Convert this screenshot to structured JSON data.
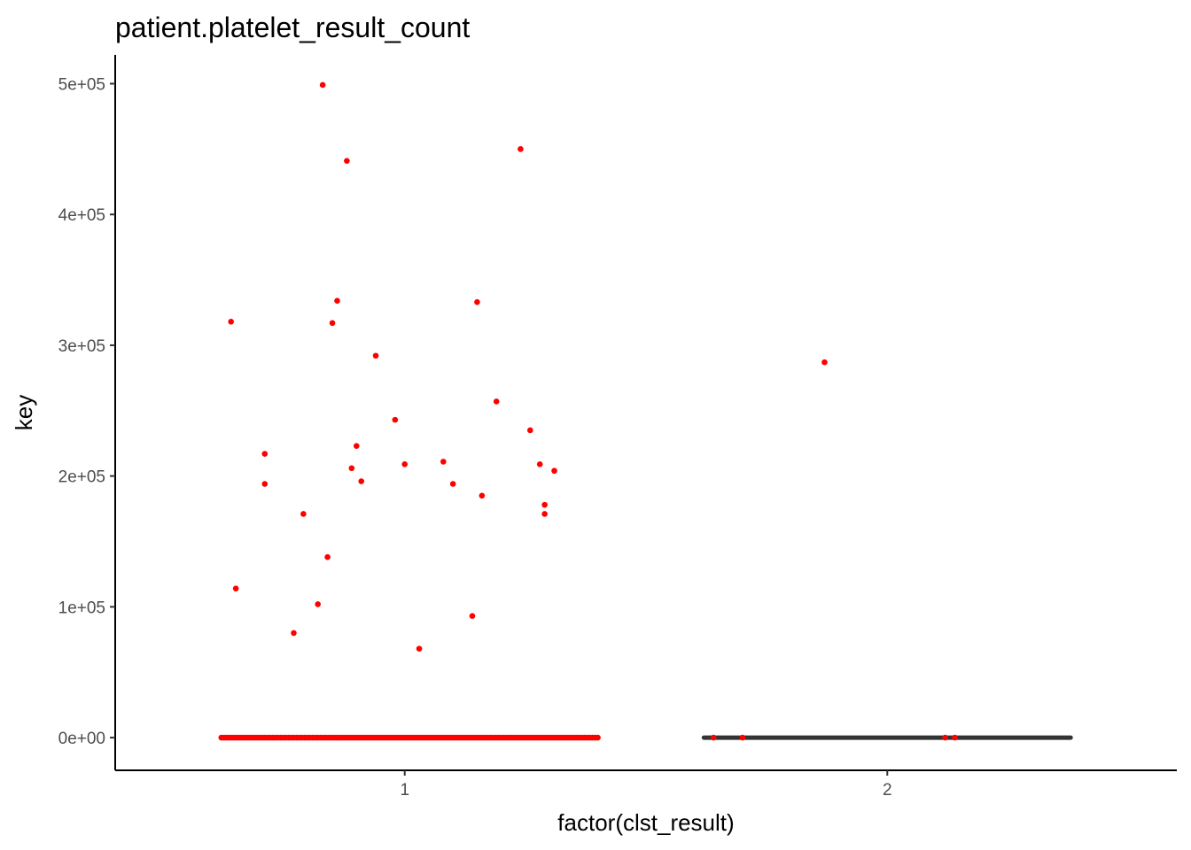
{
  "chart_data": {
    "type": "scatter",
    "title": "patient.platelet_result_count",
    "xlabel": "factor(clst_result)",
    "ylabel": "key",
    "categories": [
      "1",
      "2"
    ],
    "ylim": [
      -25000,
      522000
    ],
    "yticks": [
      {
        "value": 0,
        "label": "0e+00"
      },
      {
        "value": 100000,
        "label": "1e+05"
      },
      {
        "value": 200000,
        "label": "2e+05"
      },
      {
        "value": 300000,
        "label": "3e+05"
      },
      {
        "value": 400000,
        "label": "4e+05"
      },
      {
        "value": 500000,
        "label": "5e+05"
      }
    ],
    "grid": false,
    "point_color": "#ff0000",
    "box_color": "#333333",
    "boxes": [
      {
        "category": "2",
        "x_min": 1.62,
        "x_max": 2.38,
        "value": 0
      }
    ],
    "zero_bands": [
      {
        "category": "1",
        "x_min": 0.62,
        "x_max": 1.4,
        "value": 0
      }
    ],
    "series": [
      {
        "category": "1",
        "points": [
          [
            0.83,
            499000
          ],
          [
            1.24,
            450000
          ],
          [
            0.88,
            441000
          ],
          [
            1.15,
            333000
          ],
          [
            0.86,
            334000
          ],
          [
            0.64,
            318000
          ],
          [
            0.85,
            317000
          ],
          [
            0.94,
            292000
          ],
          [
            1.19,
            257000
          ],
          [
            0.98,
            243000
          ],
          [
            1.26,
            235000
          ],
          [
            0.9,
            223000
          ],
          [
            0.71,
            217000
          ],
          [
            1.08,
            211000
          ],
          [
            1.0,
            209000
          ],
          [
            1.28,
            209000
          ],
          [
            0.89,
            206000
          ],
          [
            1.31,
            204000
          ],
          [
            0.91,
            196000
          ],
          [
            0.71,
            194000
          ],
          [
            1.1,
            194000
          ],
          [
            1.16,
            185000
          ],
          [
            1.29,
            178000
          ],
          [
            0.79,
            171000
          ],
          [
            1.29,
            171000
          ],
          [
            0.84,
            138000
          ],
          [
            0.65,
            114000
          ],
          [
            0.82,
            102000
          ],
          [
            1.14,
            93000
          ],
          [
            0.77,
            80000
          ],
          [
            1.03,
            68000
          ]
        ]
      },
      {
        "category": "2",
        "points": [
          [
            1.87,
            287000
          ],
          [
            1.64,
            0
          ],
          [
            1.7,
            0
          ],
          [
            2.12,
            0
          ],
          [
            2.14,
            0
          ]
        ]
      }
    ]
  }
}
